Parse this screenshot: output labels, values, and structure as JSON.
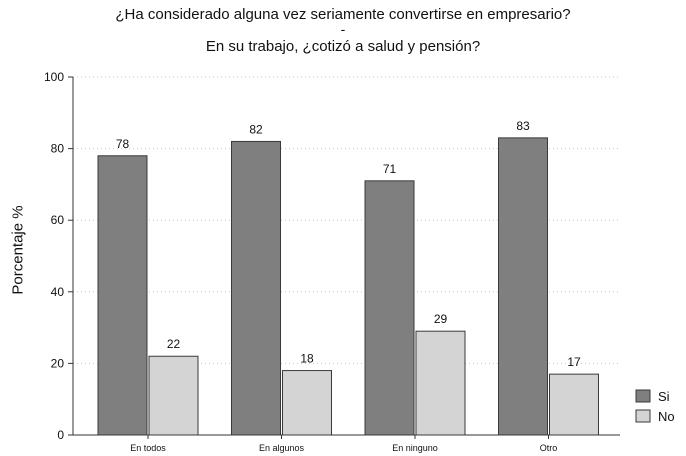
{
  "chart_data": {
    "type": "bar",
    "title": "¿Ha considerado alguna vez seriamente convertirse en empresario?",
    "title_separator": "-",
    "subtitle": "En su trabajo, ¿cotizó a salud y pensión?",
    "ylabel": "Porcentaje %",
    "xlabel": "",
    "ylim": [
      0,
      100
    ],
    "yticks": [
      0,
      20,
      40,
      60,
      80,
      100
    ],
    "categories": [
      "En todos",
      "En algunos",
      "En ninguno",
      "Otro"
    ],
    "series": [
      {
        "name": "Si",
        "values": [
          78,
          82,
          71,
          83
        ],
        "color": "#7f7f7f"
      },
      {
        "name": "No",
        "values": [
          22,
          18,
          29,
          17
        ],
        "color": "#d4d4d4"
      }
    ],
    "legend_position": "right",
    "grid": "dotted horizontal"
  }
}
